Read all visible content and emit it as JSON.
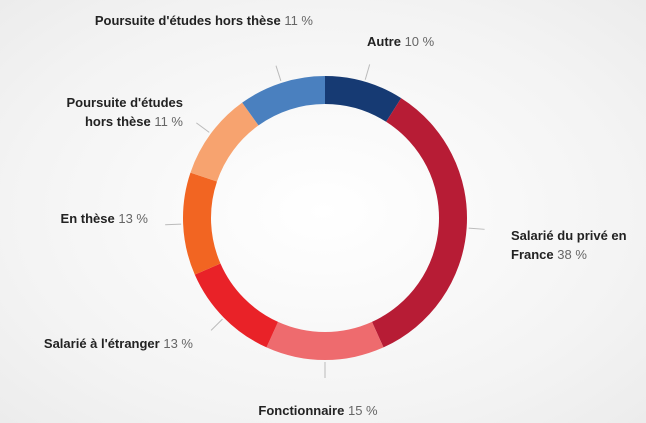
{
  "chart_data": {
    "type": "donut",
    "categories": [
      "Autre",
      "Salarié du privé en France",
      "Fonctionnaire",
      "Salarié à l'étranger",
      "En thèse",
      "Poursuite d'études hors thèse",
      "Poursuite d'études hors thèse"
    ],
    "values": [
      10,
      38,
      15,
      13,
      13,
      11,
      11
    ],
    "value_labels": [
      "10 %",
      "38 %",
      "15 %",
      "13 %",
      "13 %",
      "11 %",
      "11 %"
    ],
    "colors": [
      "#163a73",
      "#b71c35",
      "#ee6b6e",
      "#e92228",
      "#f26522",
      "#f7a36f",
      "#4a80bf"
    ]
  }
}
